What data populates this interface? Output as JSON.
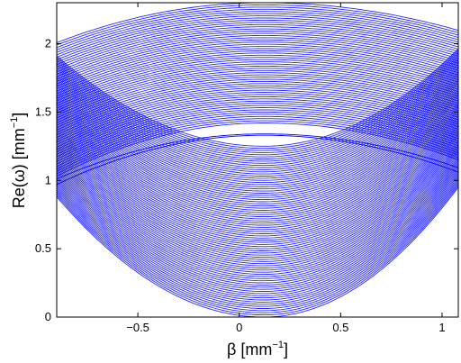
{
  "chart_data": {
    "type": "line",
    "title": "",
    "xlabel": "β [mm",
    "xlabel_sup": "−1",
    "xlabel_close": "]",
    "ylabel": "Re(ω) [mm",
    "ylabel_sup": "−1",
    "ylabel_close": "]",
    "xlim": [
      -0.9,
      1.08
    ],
    "ylim": [
      0,
      2.3
    ],
    "x_ticks": [
      -0.5,
      0,
      0.5,
      1
    ],
    "x_tick_labels": [
      "−0.5",
      "0",
      "0.5",
      "1"
    ],
    "y_ticks": [
      0,
      0.5,
      1,
      1.5,
      2
    ],
    "y_tick_labels": [
      "0",
      "0.5",
      "1",
      "1.5",
      "2"
    ],
    "grid": false,
    "line_color": "#0000ff",
    "symmetry_beta": 0.12,
    "upper_band": {
      "name": "",
      "top_at_peak": 2.3,
      "bottom_at_peak": 1.42,
      "edge_at_left": 1.03,
      "edge_at_right": 1.15
    },
    "lower_band": {
      "name": "",
      "top_at_peak": 1.25,
      "bottom_at_peak": 0.0,
      "edge_at_left": 0.88,
      "edge_at_right": 0.95
    },
    "gap_modes": [
      {
        "name": "",
        "value_at_peak": 1.34,
        "value_at_left": 1.01
      },
      {
        "name": "",
        "value_at_peak": 1.33,
        "value_at_left": 0.97
      }
    ]
  }
}
